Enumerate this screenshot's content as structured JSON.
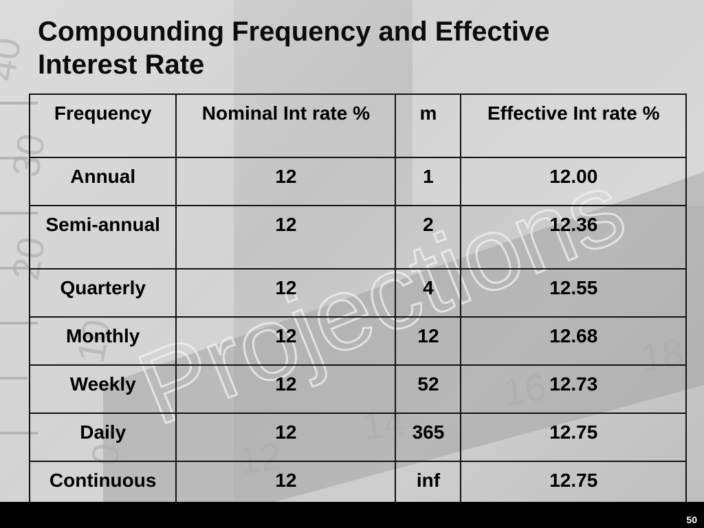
{
  "slide": {
    "title_line1": "Compounding Frequency and Effective",
    "title_line2": "Interest Rate",
    "page_number": "50"
  },
  "table": {
    "headers": {
      "frequency": "Frequency",
      "nominal": "Nominal Int rate %",
      "m": "m",
      "effective": "Effective Int rate %"
    },
    "rows": [
      {
        "frequency": "Annual",
        "nominal": "12",
        "m": "1",
        "effective": "12.00"
      },
      {
        "frequency": "Semi-annual",
        "nominal": "12",
        "m": "2",
        "effective": "12.36"
      },
      {
        "frequency": "Quarterly",
        "nominal": "12",
        "m": "4",
        "effective": "12.55"
      },
      {
        "frequency": "Monthly",
        "nominal": "12",
        "m": "12",
        "effective": "12.68"
      },
      {
        "frequency": "Weekly",
        "nominal": "12",
        "m": "52",
        "effective": "12.73"
      },
      {
        "frequency": "Daily",
        "nominal": "12",
        "m": "365",
        "effective": "12.75"
      },
      {
        "frequency": "Continuous",
        "nominal": "12",
        "m": "inf",
        "effective": "12.75"
      }
    ]
  },
  "background": {
    "watermark_text": "Projections",
    "ruler_numbers": [
      "40",
      "30",
      "20",
      "10",
      "0",
      "12",
      "14",
      "16",
      "18"
    ]
  }
}
